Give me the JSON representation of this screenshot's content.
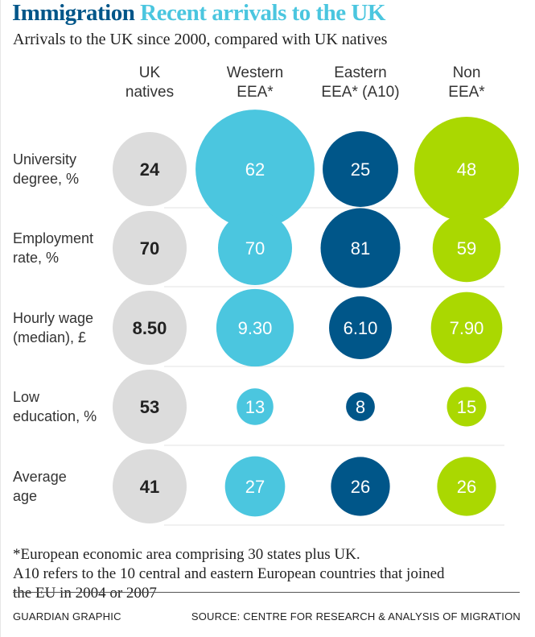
{
  "title": {
    "main": "Immigration",
    "sub": "Recent arrivals to the UK"
  },
  "subtitle": "Arrivals to the UK since 2000, compared with UK natives",
  "chart_data": {
    "type": "bubble-table",
    "columns": [
      {
        "line1": "UK",
        "line2": "natives",
        "color": "#dcdcdc",
        "text_color": "#222222"
      },
      {
        "line1": "Western",
        "line2": "EEA*",
        "color": "#4bc6df",
        "text_color": "#ffffff"
      },
      {
        "line1": "Eastern",
        "line2": "EEA* (A10)",
        "color": "#005689",
        "text_color": "#ffffff"
      },
      {
        "line1": "Non",
        "line2": "EEA*",
        "color": "#aad801",
        "text_color": "#ffffff"
      }
    ],
    "rows": [
      {
        "line1": "University",
        "line2": "degree, %",
        "values": [
          24,
          62,
          25,
          48
        ],
        "labels": [
          "24",
          "62",
          "25",
          "48"
        ]
      },
      {
        "line1": "Employment",
        "line2": "rate, %",
        "values": [
          70,
          70,
          81,
          59
        ],
        "labels": [
          "70",
          "70",
          "81",
          "59"
        ]
      },
      {
        "line1": "Hourly wage",
        "line2": "(median), £",
        "values": [
          8.5,
          9.3,
          6.1,
          7.9
        ],
        "labels": [
          "8.50",
          "9.30",
          "6.10",
          "7.90"
        ]
      },
      {
        "line1": "Low",
        "line2": "education, %",
        "values": [
          53,
          13,
          8,
          15
        ],
        "labels": [
          "53",
          "13",
          "8",
          "15"
        ]
      },
      {
        "line1": "Average",
        "line2": "age",
        "values": [
          41,
          27,
          26,
          26
        ],
        "labels": [
          "41",
          "27",
          "26",
          "26"
        ]
      }
    ]
  },
  "footnote": {
    "line1": "*European economic area comprising 30 states plus UK.",
    "line2": "A10 refers to the 10 central and eastern European countries that joined",
    "line3": "the EU in 2004 or 2007"
  },
  "credit": "GUARDIAN GRAPHIC",
  "source": "SOURCE: CENTRE FOR RESEARCH & ANALYSIS OF MIGRATION"
}
